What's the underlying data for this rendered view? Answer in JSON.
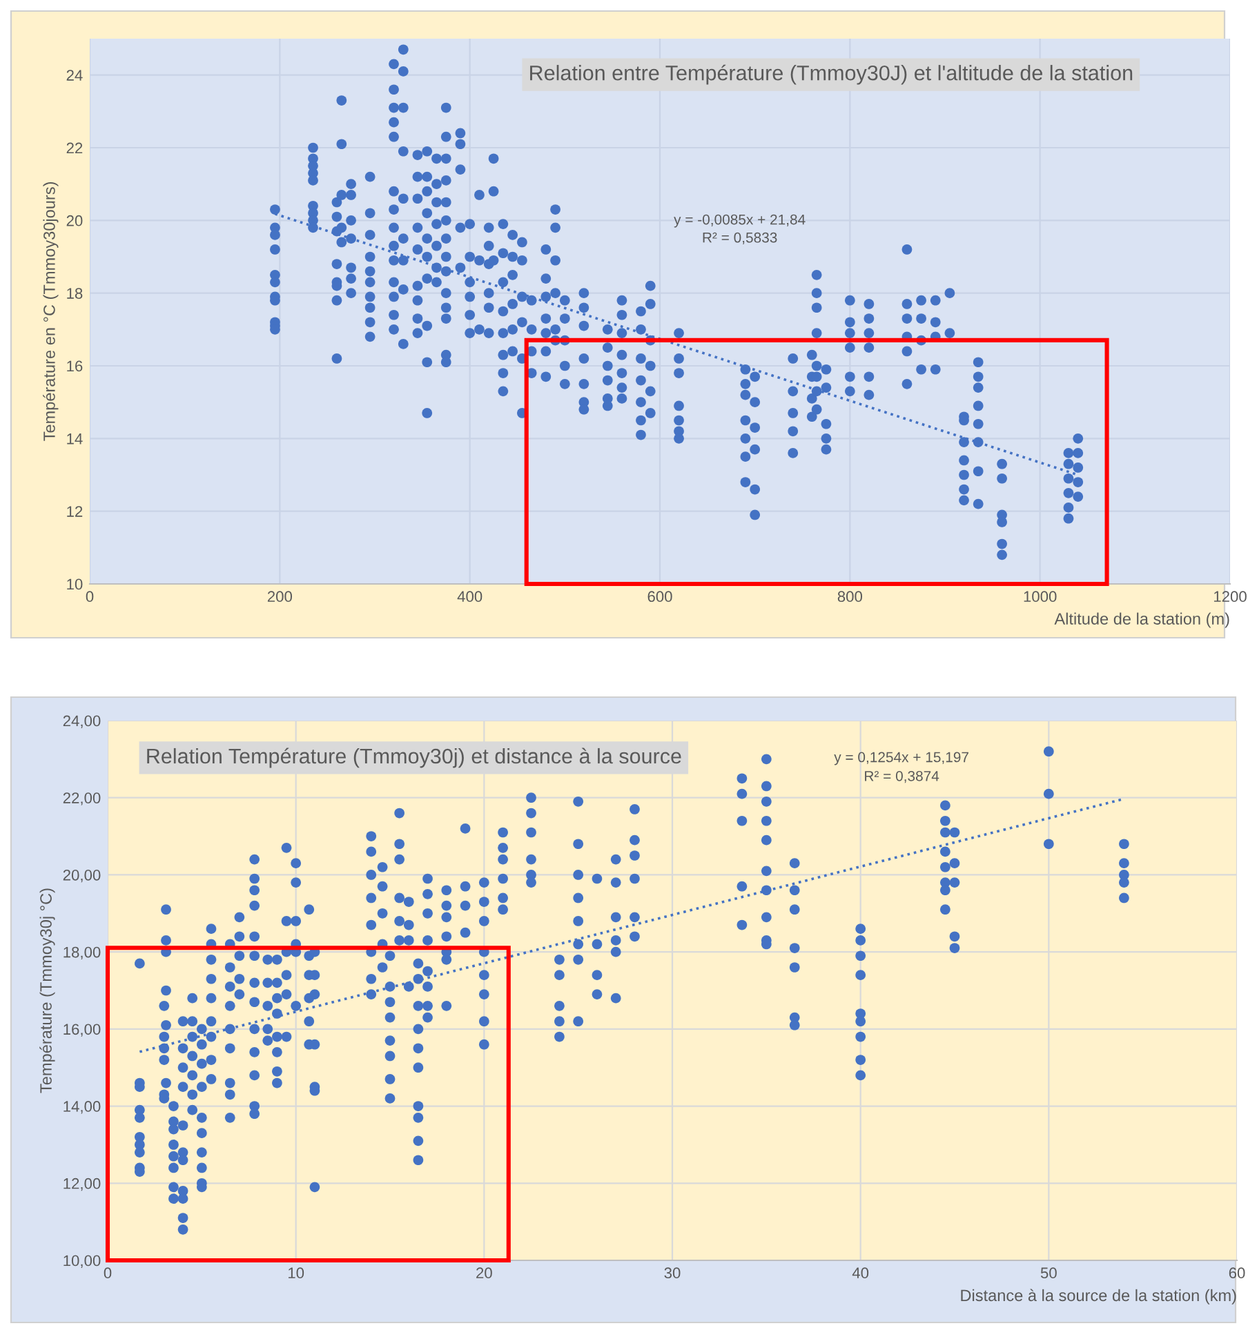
{
  "chart_data": [
    {
      "type": "scatter",
      "title": "Relation entre Température (Tmmoy30J) et l'altitude de la station",
      "xlabel": "Altitude de la station (m)",
      "ylabel": "Température en °C (Tmmoy30jours)",
      "xlim": [
        0,
        1200
      ],
      "xticks": [
        0,
        200,
        400,
        600,
        800,
        1000,
        1200
      ],
      "ylim": [
        10,
        25
      ],
      "yticks": [
        10,
        12,
        14,
        16,
        18,
        20,
        22,
        24
      ],
      "grid": true,
      "marker": "circle",
      "annotations": [
        "y = -0,0085x + 21,84",
        "R² = 0,5833"
      ],
      "series": [
        {
          "color": "#4472c4",
          "x": [
            195,
            195,
            195,
            195,
            195,
            195,
            195,
            195,
            195,
            195,
            195,
            235,
            235,
            235,
            235,
            235,
            235,
            235,
            235,
            235,
            260,
            260,
            260,
            260,
            260,
            260,
            260,
            260,
            265,
            265,
            265,
            265,
            265,
            275,
            275,
            275,
            275,
            275,
            275,
            275,
            295,
            295,
            295,
            295,
            295,
            295,
            295,
            295,
            295,
            295,
            320,
            320,
            320,
            320,
            320,
            320,
            320,
            320,
            320,
            320,
            320,
            320,
            320,
            320,
            330,
            330,
            330,
            330,
            330,
            330,
            330,
            330,
            330,
            345,
            345,
            345,
            345,
            345,
            345,
            345,
            345,
            345,
            355,
            355,
            355,
            355,
            355,
            355,
            355,
            355,
            355,
            355,
            365,
            365,
            365,
            365,
            365,
            365,
            365,
            375,
            375,
            375,
            375,
            375,
            375,
            375,
            375,
            375,
            375,
            375,
            375,
            375,
            375,
            390,
            390,
            390,
            390,
            390,
            400,
            400,
            400,
            400,
            400,
            400,
            410,
            410,
            410,
            420,
            420,
            420,
            420,
            420,
            420,
            425,
            425,
            425,
            435,
            435,
            435,
            435,
            435,
            435,
            435,
            435,
            445,
            445,
            445,
            445,
            445,
            445,
            455,
            455,
            455,
            455,
            455,
            455,
            465,
            465,
            465,
            465,
            480,
            480,
            480,
            480,
            480,
            480,
            480,
            490,
            490,
            490,
            490,
            490,
            490,
            500,
            500,
            500,
            500,
            500,
            520,
            520,
            520,
            520,
            520,
            520,
            520,
            545,
            545,
            545,
            545,
            545,
            545,
            560,
            560,
            560,
            560,
            560,
            560,
            560,
            580,
            580,
            580,
            580,
            580,
            580,
            580,
            590,
            590,
            590,
            590,
            590,
            590,
            620,
            620,
            620,
            620,
            620,
            620,
            620,
            690,
            690,
            690,
            690,
            690,
            690,
            690,
            700,
            700,
            700,
            700,
            700,
            700,
            740,
            740,
            740,
            740,
            740,
            760,
            760,
            760,
            760,
            765,
            765,
            765,
            765,
            765,
            765,
            765,
            765,
            775,
            775,
            775,
            775,
            775,
            800,
            800,
            800,
            800,
            800,
            800,
            820,
            820,
            820,
            820,
            820,
            820,
            860,
            860,
            860,
            860,
            860,
            860,
            875,
            875,
            875,
            875,
            890,
            890,
            890,
            890,
            905,
            905,
            920,
            920,
            920,
            920,
            920,
            920,
            920,
            935,
            935,
            935,
            935,
            935,
            935,
            935,
            935,
            960,
            960,
            960,
            960,
            960,
            960,
            1030,
            1030,
            1030,
            1030,
            1030,
            1030,
            1040,
            1040,
            1040,
            1040,
            1040
          ],
          "values": [
            20.3,
            19.8,
            19.6,
            19.2,
            18.5,
            18.3,
            17.9,
            17.8,
            17.2,
            17.1,
            17.0,
            22.0,
            21.7,
            21.5,
            21.3,
            21.1,
            20.4,
            20.2,
            20.0,
            19.8,
            20.5,
            20.1,
            19.7,
            18.8,
            18.3,
            18.2,
            17.8,
            16.2,
            23.3,
            22.1,
            20.7,
            19.8,
            19.4,
            21.0,
            20.7,
            20.0,
            19.5,
            18.7,
            18.4,
            18.0,
            21.2,
            20.2,
            19.6,
            19.0,
            18.6,
            18.3,
            17.9,
            17.6,
            17.2,
            16.8,
            24.3,
            23.6,
            23.1,
            22.7,
            22.3,
            20.8,
            20.3,
            19.8,
            19.3,
            18.9,
            18.3,
            17.9,
            17.4,
            17.0,
            24.7,
            24.1,
            23.1,
            21.9,
            20.6,
            19.5,
            18.9,
            18.1,
            16.6,
            21.8,
            21.2,
            20.6,
            19.8,
            19.2,
            18.2,
            17.8,
            17.3,
            16.9,
            21.9,
            21.2,
            20.8,
            20.2,
            19.5,
            19.0,
            18.4,
            17.1,
            16.1,
            14.7,
            21.7,
            21.0,
            20.5,
            19.9,
            19.3,
            18.7,
            18.3,
            23.1,
            22.3,
            21.7,
            21.1,
            20.5,
            20.0,
            19.5,
            19.0,
            18.6,
            18.0,
            17.6,
            17.3,
            16.3,
            16.1,
            22.4,
            22.1,
            21.4,
            19.8,
            18.7,
            19.9,
            19.0,
            18.3,
            17.9,
            17.4,
            16.9,
            20.7,
            18.9,
            17.0,
            19.8,
            19.3,
            18.8,
            18.0,
            17.6,
            16.9,
            21.7,
            20.8,
            18.9,
            19.9,
            19.1,
            18.3,
            17.5,
            16.9,
            16.3,
            15.8,
            15.3,
            19.6,
            19.0,
            18.5,
            17.7,
            17.0,
            16.4,
            19.4,
            18.9,
            17.9,
            17.2,
            16.2,
            14.7,
            17.8,
            17.0,
            16.4,
            15.8,
            19.2,
            18.4,
            17.9,
            17.3,
            16.9,
            16.4,
            15.7,
            20.3,
            19.8,
            18.9,
            18.0,
            17.0,
            16.7,
            17.8,
            17.3,
            16.7,
            16.0,
            15.5,
            18.0,
            17.6,
            17.1,
            16.2,
            15.5,
            15.0,
            14.8,
            17.0,
            16.5,
            16.0,
            15.6,
            15.1,
            14.9,
            17.8,
            17.4,
            16.9,
            16.3,
            15.8,
            15.4,
            15.1,
            17.5,
            17.0,
            16.2,
            15.6,
            15.0,
            14.5,
            14.1,
            18.2,
            17.7,
            16.7,
            16.0,
            15.3,
            14.7,
            16.9,
            16.2,
            15.8,
            14.9,
            14.5,
            14.2,
            14.0,
            15.9,
            15.5,
            15.2,
            14.5,
            14.0,
            13.5,
            12.8,
            15.7,
            15.0,
            14.3,
            13.7,
            12.6,
            11.9,
            16.2,
            15.3,
            14.7,
            14.2,
            13.6,
            16.3,
            15.7,
            15.1,
            14.6,
            18.5,
            18.0,
            17.6,
            16.9,
            16.0,
            15.7,
            15.3,
            14.8,
            15.9,
            15.4,
            14.4,
            14.0,
            13.7,
            17.8,
            17.2,
            16.9,
            16.5,
            15.7,
            15.3,
            17.7,
            17.3,
            16.9,
            16.5,
            15.7,
            15.2,
            19.2,
            17.7,
            17.3,
            16.8,
            16.4,
            15.5,
            17.8,
            17.3,
            16.7,
            15.9,
            17.8,
            17.2,
            16.8,
            15.9,
            18.0,
            16.9,
            14.6,
            14.5,
            13.9,
            13.4,
            13.0,
            12.6,
            12.3,
            16.1,
            15.7,
            15.4,
            14.9,
            14.4,
            13.9,
            13.1,
            12.2,
            13.3,
            12.9,
            11.9,
            11.7,
            11.1,
            10.8,
            13.6,
            13.3,
            12.9,
            12.5,
            12.1,
            11.8,
            14.0,
            13.6,
            13.2,
            12.8,
            12.4
          ]
        },
        {
          "type": "line",
          "color": "#4472c4",
          "line_style": "dotted",
          "marker": "none",
          "x": [
            195,
            1040
          ],
          "values": [
            20.18,
            13.0
          ]
        }
      ]
    },
    {
      "type": "scatter",
      "title": "Relation Température (Tmmoy30j) et distance à la source",
      "xlabel": "Distance à la source de la station (km)",
      "ylabel": "Température (Tmmoy30j °C)",
      "xlim": [
        0,
        60
      ],
      "xticks": [
        0,
        10,
        20,
        30,
        40,
        50,
        60
      ],
      "ylim": [
        10,
        24
      ],
      "yticks": [
        {
          "value": 10,
          "label": "10,00"
        },
        {
          "value": 12,
          "label": "12,00"
        },
        {
          "value": 14,
          "label": "14,00"
        },
        {
          "value": 16,
          "label": "16,00"
        },
        {
          "value": 18,
          "label": "18,00"
        },
        {
          "value": 20,
          "label": "20,00"
        },
        {
          "value": 22,
          "label": "22,00"
        },
        {
          "value": 24,
          "label": "24,00"
        }
      ],
      "grid": true,
      "marker": "circle",
      "annotations": [
        "y = 0,1254x + 15,197",
        "R² = 0,3874"
      ],
      "series": [
        {
          "color": "#4472c4",
          "x": [
            1.7,
            1.7,
            1.7,
            1.7,
            1.7,
            1.7,
            1.7,
            1.7,
            1.7,
            1.7,
            3,
            3,
            3,
            3,
            3,
            3,
            3.1,
            3.1,
            3.1,
            3.1,
            3.1,
            3.1,
            3.5,
            3.5,
            3.5,
            3.5,
            3.5,
            3.5,
            3.5,
            3.5,
            4,
            4,
            4,
            4,
            4,
            4,
            4,
            4,
            4,
            4,
            4,
            4.5,
            4.5,
            4.5,
            4.5,
            4.5,
            4.5,
            4.5,
            5,
            5,
            5,
            5,
            5,
            5,
            5,
            5,
            5,
            5,
            5.5,
            5.5,
            5.5,
            5.5,
            5.5,
            5.5,
            5.5,
            5.5,
            5.5,
            6.5,
            6.5,
            6.5,
            6.5,
            6.5,
            6.5,
            6.5,
            6.5,
            6.5,
            7,
            7,
            7,
            7,
            7,
            7.8,
            7.8,
            7.8,
            7.8,
            7.8,
            7.8,
            7.8,
            7.8,
            7.8,
            7.8,
            7.8,
            7.8,
            7.8,
            8.5,
            8.5,
            8.5,
            8.5,
            8.5,
            9,
            9,
            9,
            9,
            9,
            9,
            9,
            9,
            9.5,
            9.5,
            9.5,
            9.5,
            9.5,
            9.5,
            10,
            10,
            10,
            10,
            10,
            10,
            10.7,
            10.7,
            10.7,
            10.7,
            10.7,
            10.7,
            11,
            11,
            11,
            11,
            11,
            11,
            11,
            14,
            14,
            14,
            14,
            14,
            14,
            14,
            14,
            14.6,
            14.6,
            14.6,
            14.6,
            14.6,
            15,
            15,
            15,
            15,
            15,
            15,
            15,
            15,
            15.5,
            15.5,
            15.5,
            15.5,
            15.5,
            15.5,
            16,
            16,
            16,
            16,
            16.5,
            16.5,
            16.5,
            16.5,
            16.5,
            16.5,
            16.5,
            16.5,
            16.5,
            16.5,
            17,
            17,
            17,
            17,
            17,
            17,
            17,
            17,
            18,
            18,
            18,
            18,
            18,
            18,
            18,
            19,
            19,
            19,
            19,
            20,
            20,
            20,
            20,
            20,
            20,
            20,
            20,
            21,
            21,
            21,
            21,
            21,
            21,
            22.5,
            22.5,
            22.5,
            22.5,
            22.5,
            22.5,
            24,
            24,
            24,
            24,
            24,
            25,
            25,
            25,
            25,
            25,
            25,
            25,
            25,
            26,
            26,
            26,
            26,
            27,
            27,
            27,
            27,
            27,
            27,
            28,
            28,
            28,
            28,
            28,
            28,
            33.7,
            33.7,
            33.7,
            33.7,
            33.7,
            35,
            35,
            35,
            35,
            35,
            35,
            35,
            35,
            35,
            35,
            36.5,
            36.5,
            36.5,
            36.5,
            36.5,
            36.5,
            36.5,
            40,
            40,
            40,
            40,
            40,
            40,
            40,
            40,
            40,
            44.5,
            44.5,
            44.5,
            44.5,
            44.5,
            44.5,
            44.5,
            44.5,
            45,
            45,
            45,
            45,
            45,
            50,
            50,
            50,
            54,
            54,
            54,
            54,
            54
          ],
          "values": [
            17.7,
            14.6,
            14.5,
            13.9,
            13.7,
            13.2,
            13.0,
            12.8,
            12.4,
            12.3,
            16.6,
            15.8,
            15.5,
            15.2,
            14.3,
            14.2,
            19.1,
            18.3,
            18.0,
            17.0,
            16.1,
            14.6,
            14.0,
            13.6,
            13.4,
            13.0,
            12.7,
            12.4,
            11.9,
            11.6,
            16.2,
            15.5,
            15.0,
            14.5,
            13.5,
            12.8,
            12.6,
            11.8,
            11.6,
            11.1,
            10.8,
            16.8,
            16.2,
            15.8,
            15.3,
            14.8,
            14.3,
            13.9,
            16.0,
            15.6,
            15.1,
            14.5,
            13.7,
            13.3,
            12.8,
            12.4,
            12.0,
            11.9,
            18.6,
            18.2,
            17.8,
            17.3,
            16.8,
            16.2,
            15.8,
            15.2,
            14.7,
            18.2,
            17.6,
            17.1,
            16.6,
            16.0,
            15.5,
            14.6,
            14.3,
            13.7,
            18.9,
            18.4,
            17.9,
            17.3,
            16.9,
            20.4,
            19.9,
            19.6,
            19.2,
            18.4,
            17.9,
            17.2,
            16.7,
            16.0,
            15.4,
            14.8,
            14.0,
            13.8,
            17.8,
            17.2,
            16.6,
            16.0,
            15.7,
            17.8,
            17.2,
            16.8,
            16.4,
            15.8,
            15.4,
            14.9,
            14.6,
            20.7,
            18.8,
            18.0,
            17.4,
            16.9,
            15.8,
            20.3,
            19.8,
            18.8,
            18.2,
            18.0,
            16.6,
            19.1,
            17.9,
            17.4,
            16.8,
            16.2,
            15.6,
            18.0,
            17.4,
            16.9,
            15.6,
            14.5,
            14.4,
            11.9,
            21.0,
            20.6,
            20.0,
            19.4,
            18.7,
            18.0,
            17.3,
            16.9,
            20.2,
            19.7,
            19.0,
            18.2,
            17.6,
            17.9,
            17.1,
            16.7,
            16.3,
            15.7,
            15.3,
            14.7,
            14.2,
            21.6,
            20.8,
            20.4,
            19.4,
            18.8,
            18.3,
            19.3,
            18.7,
            18.3,
            17.1,
            17.7,
            17.3,
            16.6,
            16.0,
            15.5,
            15.0,
            14.0,
            13.7,
            13.1,
            12.6,
            19.9,
            19.5,
            19.0,
            18.3,
            17.5,
            17.1,
            16.6,
            16.3,
            19.6,
            19.2,
            18.9,
            18.4,
            18.0,
            17.8,
            16.6,
            21.2,
            19.7,
            19.2,
            18.5,
            19.8,
            19.3,
            18.8,
            18.0,
            17.4,
            16.9,
            16.2,
            15.6,
            21.1,
            20.7,
            20.4,
            19.9,
            19.4,
            19.1,
            22.0,
            21.6,
            21.1,
            20.4,
            20.0,
            19.8,
            17.8,
            17.4,
            16.6,
            16.2,
            15.8,
            21.9,
            20.8,
            20.0,
            19.4,
            18.8,
            18.2,
            17.8,
            16.2,
            19.9,
            18.2,
            17.4,
            16.9,
            20.4,
            19.8,
            18.9,
            18.3,
            18.0,
            16.8,
            21.7,
            20.9,
            20.5,
            19.9,
            18.9,
            18.4,
            22.5,
            22.1,
            21.4,
            19.7,
            18.7,
            23.0,
            22.3,
            21.9,
            21.4,
            20.9,
            20.1,
            19.6,
            18.9,
            18.3,
            18.2,
            20.3,
            19.6,
            19.1,
            18.1,
            17.6,
            16.3,
            16.1,
            18.6,
            18.3,
            17.9,
            17.4,
            16.4,
            16.2,
            15.8,
            15.2,
            14.8,
            21.8,
            21.4,
            21.1,
            20.6,
            20.2,
            19.8,
            19.6,
            19.1,
            21.1,
            20.3,
            19.8,
            18.4,
            18.1,
            23.2,
            22.1,
            20.8,
            20.8,
            20.3,
            20.0,
            19.8,
            19.4
          ]
        },
        {
          "type": "line",
          "color": "#4472c4",
          "line_style": "dotted",
          "marker": "none",
          "x": [
            1.7,
            54
          ],
          "values": [
            15.41,
            21.97
          ]
        }
      ]
    }
  ]
}
